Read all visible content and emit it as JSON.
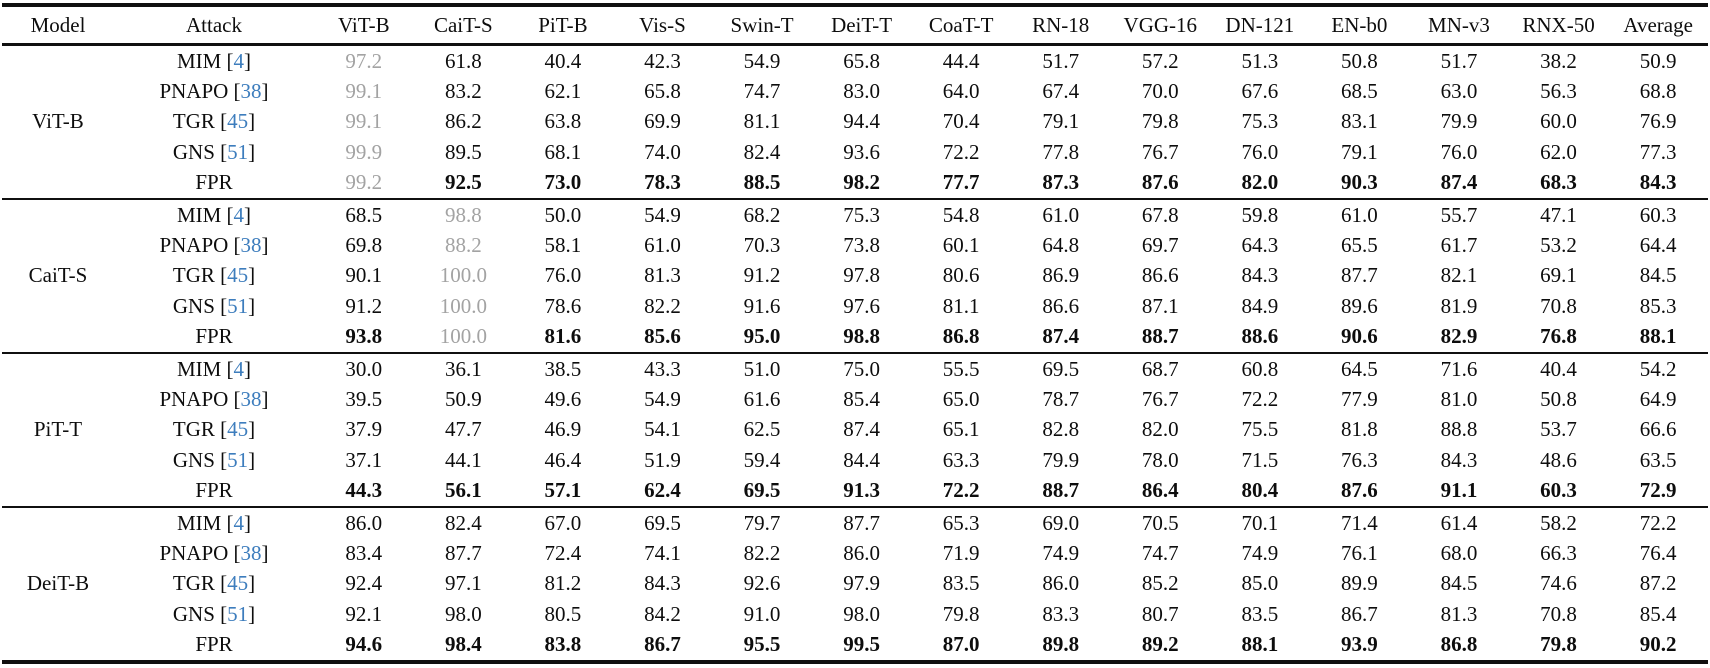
{
  "table": {
    "colors": {
      "whitebox_gray": "#a3a3a3",
      "citation_blue": "#3d7dbd",
      "rule_black": "#101010"
    },
    "columns": [
      "Model",
      "Attack",
      "ViT-B",
      "CaiT-S",
      "PiT-B",
      "Vis-S",
      "Swin-T",
      "DeiT-T",
      "CoaT-T",
      "RN-18",
      "VGG-16",
      "DN-121",
      "EN-b0",
      "MN-v3",
      "RNX-50",
      "Average"
    ],
    "groups": [
      {
        "model": "ViT-B",
        "whitebox_col": 0,
        "rows": [
          {
            "attack": "MIM",
            "cite": "4",
            "bold": false,
            "values": [
              "97.2",
              "61.8",
              "40.4",
              "42.3",
              "54.9",
              "65.8",
              "44.4",
              "51.7",
              "57.2",
              "51.3",
              "50.8",
              "51.7",
              "38.2",
              "50.9"
            ]
          },
          {
            "attack": "PNAPO",
            "cite": "38",
            "bold": false,
            "values": [
              "99.1",
              "83.2",
              "62.1",
              "65.8",
              "74.7",
              "83.0",
              "64.0",
              "67.4",
              "70.0",
              "67.6",
              "68.5",
              "63.0",
              "56.3",
              "68.8"
            ]
          },
          {
            "attack": "TGR",
            "cite": "45",
            "bold": false,
            "values": [
              "99.1",
              "86.2",
              "63.8",
              "69.9",
              "81.1",
              "94.4",
              "70.4",
              "79.1",
              "79.8",
              "75.3",
              "83.1",
              "79.9",
              "60.0",
              "76.9"
            ]
          },
          {
            "attack": "GNS",
            "cite": "51",
            "bold": false,
            "values": [
              "99.9",
              "89.5",
              "68.1",
              "74.0",
              "82.4",
              "93.6",
              "72.2",
              "77.8",
              "76.7",
              "76.0",
              "79.1",
              "76.0",
              "62.0",
              "77.3"
            ]
          },
          {
            "attack": "FPR",
            "cite": null,
            "bold": true,
            "values": [
              "99.2",
              "92.5",
              "73.0",
              "78.3",
              "88.5",
              "98.2",
              "77.7",
              "87.3",
              "87.6",
              "82.0",
              "90.3",
              "87.4",
              "68.3",
              "84.3"
            ]
          }
        ]
      },
      {
        "model": "CaiT-S",
        "whitebox_col": 1,
        "rows": [
          {
            "attack": "MIM",
            "cite": "4",
            "bold": false,
            "values": [
              "68.5",
              "98.8",
              "50.0",
              "54.9",
              "68.2",
              "75.3",
              "54.8",
              "61.0",
              "67.8",
              "59.8",
              "61.0",
              "55.7",
              "47.1",
              "60.3"
            ]
          },
          {
            "attack": "PNAPO",
            "cite": "38",
            "bold": false,
            "values": [
              "69.8",
              "88.2",
              "58.1",
              "61.0",
              "70.3",
              "73.8",
              "60.1",
              "64.8",
              "69.7",
              "64.3",
              "65.5",
              "61.7",
              "53.2",
              "64.4"
            ]
          },
          {
            "attack": "TGR",
            "cite": "45",
            "bold": false,
            "values": [
              "90.1",
              "100.0",
              "76.0",
              "81.3",
              "91.2",
              "97.8",
              "80.6",
              "86.9",
              "86.6",
              "84.3",
              "87.7",
              "82.1",
              "69.1",
              "84.5"
            ]
          },
          {
            "attack": "GNS",
            "cite": "51",
            "bold": false,
            "values": [
              "91.2",
              "100.0",
              "78.6",
              "82.2",
              "91.6",
              "97.6",
              "81.1",
              "86.6",
              "87.1",
              "84.9",
              "89.6",
              "81.9",
              "70.8",
              "85.3"
            ]
          },
          {
            "attack": "FPR",
            "cite": null,
            "bold": true,
            "values": [
              "93.8",
              "100.0",
              "81.6",
              "85.6",
              "95.0",
              "98.8",
              "86.8",
              "87.4",
              "88.7",
              "88.6",
              "90.6",
              "82.9",
              "76.8",
              "88.1"
            ]
          }
        ]
      },
      {
        "model": "PiT-T",
        "whitebox_col": null,
        "rows": [
          {
            "attack": "MIM",
            "cite": "4",
            "bold": false,
            "values": [
              "30.0",
              "36.1",
              "38.5",
              "43.3",
              "51.0",
              "75.0",
              "55.5",
              "69.5",
              "68.7",
              "60.8",
              "64.5",
              "71.6",
              "40.4",
              "54.2"
            ]
          },
          {
            "attack": "PNAPO",
            "cite": "38",
            "bold": false,
            "values": [
              "39.5",
              "50.9",
              "49.6",
              "54.9",
              "61.6",
              "85.4",
              "65.0",
              "78.7",
              "76.7",
              "72.2",
              "77.9",
              "81.0",
              "50.8",
              "64.9"
            ]
          },
          {
            "attack": "TGR",
            "cite": "45",
            "bold": false,
            "values": [
              "37.9",
              "47.7",
              "46.9",
              "54.1",
              "62.5",
              "87.4",
              "65.1",
              "82.8",
              "82.0",
              "75.5",
              "81.8",
              "88.8",
              "53.7",
              "66.6"
            ]
          },
          {
            "attack": "GNS",
            "cite": "51",
            "bold": false,
            "values": [
              "37.1",
              "44.1",
              "46.4",
              "51.9",
              "59.4",
              "84.4",
              "63.3",
              "79.9",
              "78.0",
              "71.5",
              "76.3",
              "84.3",
              "48.6",
              "63.5"
            ]
          },
          {
            "attack": "FPR",
            "cite": null,
            "bold": true,
            "values": [
              "44.3",
              "56.1",
              "57.1",
              "62.4",
              "69.5",
              "91.3",
              "72.2",
              "88.7",
              "86.4",
              "80.4",
              "87.6",
              "91.1",
              "60.3",
              "72.9"
            ]
          }
        ]
      },
      {
        "model": "DeiT-B",
        "whitebox_col": null,
        "rows": [
          {
            "attack": "MIM",
            "cite": "4",
            "bold": false,
            "values": [
              "86.0",
              "82.4",
              "67.0",
              "69.5",
              "79.7",
              "87.7",
              "65.3",
              "69.0",
              "70.5",
              "70.1",
              "71.4",
              "61.4",
              "58.2",
              "72.2"
            ]
          },
          {
            "attack": "PNAPO",
            "cite": "38",
            "bold": false,
            "values": [
              "83.4",
              "87.7",
              "72.4",
              "74.1",
              "82.2",
              "86.0",
              "71.9",
              "74.9",
              "74.7",
              "74.9",
              "76.1",
              "68.0",
              "66.3",
              "76.4"
            ]
          },
          {
            "attack": "TGR",
            "cite": "45",
            "bold": false,
            "values": [
              "92.4",
              "97.1",
              "81.2",
              "84.3",
              "92.6",
              "97.9",
              "83.5",
              "86.0",
              "85.2",
              "85.0",
              "89.9",
              "84.5",
              "74.6",
              "87.2"
            ]
          },
          {
            "attack": "GNS",
            "cite": "51",
            "bold": false,
            "values": [
              "92.1",
              "98.0",
              "80.5",
              "84.2",
              "91.0",
              "98.0",
              "79.8",
              "83.3",
              "80.7",
              "83.5",
              "86.7",
              "81.3",
              "70.8",
              "85.4"
            ]
          },
          {
            "attack": "FPR",
            "cite": null,
            "bold": true,
            "values": [
              "94.6",
              "98.4",
              "83.8",
              "86.7",
              "95.5",
              "99.5",
              "87.0",
              "89.8",
              "89.2",
              "88.1",
              "93.9",
              "86.8",
              "79.8",
              "90.2"
            ]
          }
        ]
      }
    ]
  }
}
